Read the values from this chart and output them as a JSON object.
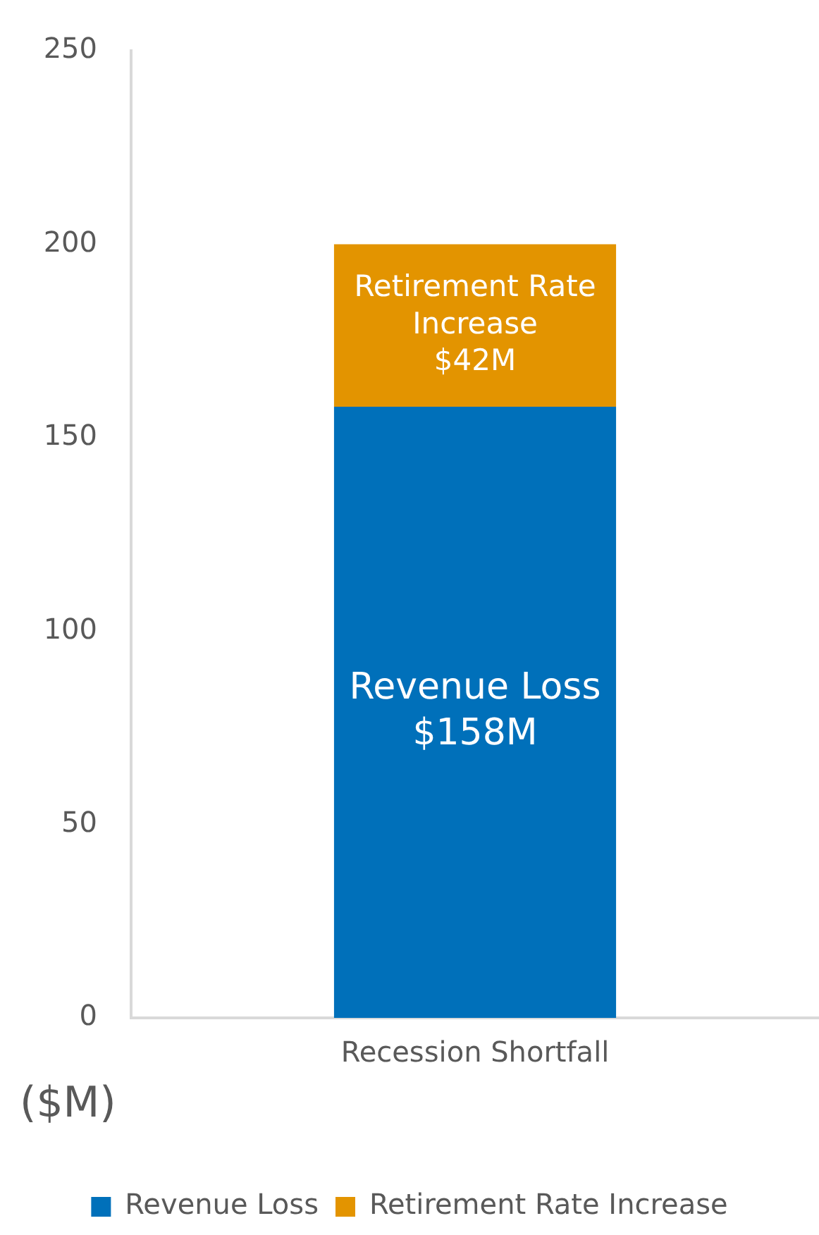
{
  "chart_data": {
    "type": "bar",
    "stacked": true,
    "categories": [
      "Recession Shortfall"
    ],
    "series": [
      {
        "name": "Revenue Loss",
        "color": "#0070ba",
        "values": [
          158
        ],
        "value_labels": [
          "$158M"
        ]
      },
      {
        "name": "Retirement Rate Increase",
        "color": "#e39400",
        "values": [
          42
        ],
        "value_labels": [
          "$42M"
        ]
      }
    ],
    "ylabel": "($M)",
    "ylim": [
      0,
      250
    ],
    "yticks": [
      0,
      50,
      100,
      150,
      200,
      250
    ],
    "grid": false,
    "legend": "bottom"
  }
}
